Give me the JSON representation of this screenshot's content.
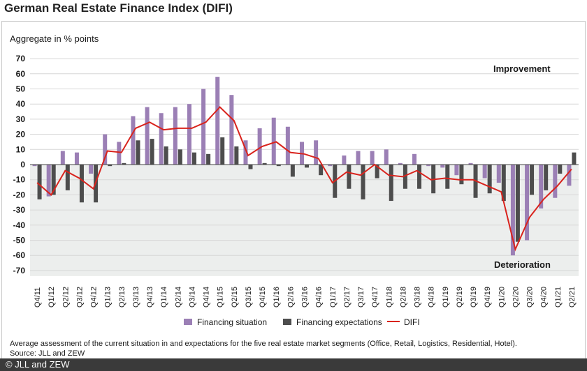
{
  "title": "German Real Estate Finance Index (DIFI)",
  "copyright": "© JLL and ZEW",
  "chart_data": {
    "type": "bar",
    "title": "German Real Estate Finance Index (DIFI)",
    "ylabel": "Aggregate in % points",
    "ylim": [
      -70,
      70
    ],
    "yticks": [
      70,
      60,
      50,
      40,
      30,
      20,
      10,
      0,
      -10,
      -20,
      -30,
      -40,
      -50,
      -60,
      -70
    ],
    "grid": "horizontal",
    "legend_position": "bottom",
    "categories": [
      "Q4/11",
      "Q1/12",
      "Q2/12",
      "Q3/12",
      "Q4/12",
      "Q1/13",
      "Q2/13",
      "Q3/13",
      "Q4/13",
      "Q1/14",
      "Q2/14",
      "Q3/14",
      "Q4/14",
      "Q1/15",
      "Q2/15",
      "Q3/15",
      "Q4/15",
      "Q1/16",
      "Q2/16",
      "Q3/16",
      "Q4/16",
      "Q1/17",
      "Q2/17",
      "Q3/17",
      "Q4/17",
      "Q1/18",
      "Q2/18",
      "Q3/18",
      "Q4/18",
      "Q1/19",
      "Q2/19",
      "Q3/19",
      "Q4/19",
      "Q1/20",
      "Q2/20",
      "Q3/20",
      "Q4/20",
      "Q1/21",
      "Q2/21"
    ],
    "series": [
      {
        "name": "Financing situation",
        "color": "#9b7fb5",
        "values": [
          -1,
          -21,
          9,
          8,
          -6,
          20,
          15,
          32,
          38,
          34,
          38,
          40,
          50,
          58,
          46,
          16,
          24,
          31,
          25,
          15,
          16,
          -1,
          6,
          9,
          9,
          10,
          1,
          7,
          -1,
          -2,
          -7,
          1,
          -9,
          -12,
          -60,
          -50,
          -29,
          -22,
          -14
        ]
      },
      {
        "name": "Financing expectations",
        "color": "#4d4d4d",
        "values": [
          -23,
          -20,
          -17,
          -25,
          -25,
          -1,
          1,
          16,
          17,
          12,
          10,
          8,
          7,
          18,
          12,
          -3,
          1,
          -1,
          -8,
          -2,
          -7,
          -22,
          -16,
          -23,
          -9,
          -24,
          -16,
          -16,
          -19,
          -16,
          -13,
          -22,
          -19,
          -24,
          -51,
          -20,
          -17,
          -6,
          8
        ]
      },
      {
        "name": "DIFI",
        "color": "#d9231d",
        "values": [
          -12,
          -20,
          -4,
          -9,
          -16,
          9,
          8,
          24,
          28,
          23,
          24,
          24,
          28,
          38,
          29,
          6,
          12,
          15,
          8,
          7,
          4,
          -12,
          -5,
          -7,
          0,
          -7,
          -8,
          -4,
          -10,
          -9,
          -10,
          -10,
          -14,
          -18,
          -56,
          -35,
          -23,
          -14,
          -3
        ]
      }
    ],
    "annotations": [
      "Improvement",
      "Deterioration"
    ],
    "notes": [
      "Average assessment of the current situation in and expectations for the five real estate market segments (Office, Retail, Logistics, Residential, Hotel).",
      "Source: JLL and ZEW"
    ]
  }
}
